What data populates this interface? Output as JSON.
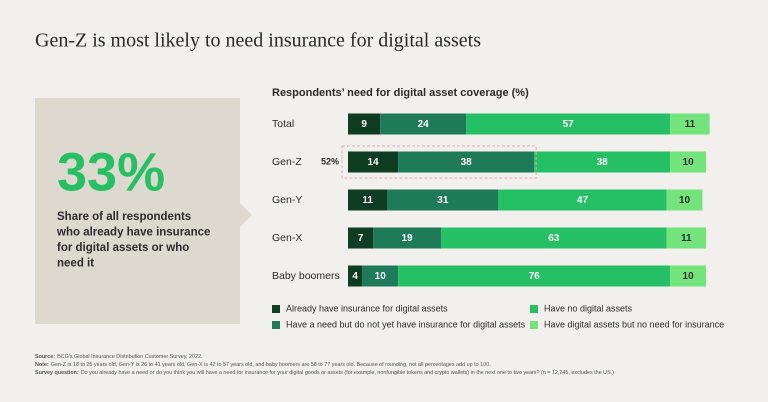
{
  "headline": "Gen-Z is most likely to need insurance for digital assets",
  "callout": {
    "stat": "33%",
    "lines": [
      "Share of all respondents",
      "who already have insurance",
      "for digital assets or who",
      "need it"
    ]
  },
  "chart_data": {
    "type": "bar",
    "orientation": "horizontal",
    "stacked": true,
    "title": "Respondents’ need for digital asset coverage (%)",
    "categories": [
      "Total",
      "Gen-Z",
      "Gen-Y",
      "Gen-X",
      "Baby boomers"
    ],
    "series": [
      {
        "name": "Already have insurance for digital assets",
        "color": "#0f3d22",
        "values": [
          9,
          14,
          11,
          7,
          4
        ]
      },
      {
        "name": "Have a need but do not yet have insurance for digital assets",
        "color": "#1e7a58",
        "values": [
          24,
          38,
          31,
          19,
          10
        ]
      },
      {
        "name": "Have no digital assets",
        "color": "#25c063",
        "values": [
          57,
          38,
          47,
          63,
          76
        ]
      },
      {
        "name": "Have digital assets but no need for insurance",
        "color": "#73e47c",
        "values": [
          11,
          10,
          10,
          11,
          10
        ]
      }
    ],
    "xlim": [
      0,
      100
    ],
    "annotation": {
      "category": 1,
      "text": "52%"
    }
  },
  "notes": [
    {
      "label": "Source:",
      "text": "BCG’s Global Insurance Distribution Customer Survey, 2022."
    },
    {
      "label": "Note:",
      "text": "Gen-Z is 18 to 25 years old, Gen-Y is 26 to 41 years old, Gen-X is 42 to 57 years old, and baby boomers are 58 to 77 years old. Because of rounding, not all percentages add up to 100."
    },
    {
      "label": "Survey question:",
      "text": "Do you already have a need or do you think you will have a need for insurance for your digital goods or assets (for example, nonfungible tokens and crypto wallets) in the next one to two years? (n = 12,245, excludes the US.)"
    }
  ]
}
